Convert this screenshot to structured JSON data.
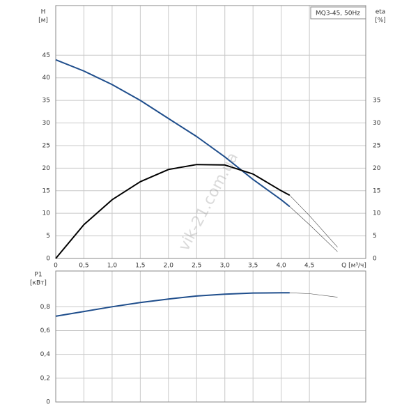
{
  "chart_data": [
    {
      "type": "line",
      "title": "MQ3-45, 50Hz",
      "y_label": "H",
      "y_unit": "[м]",
      "y2_label": "eta",
      "y2_unit": "[%]",
      "x_label": "Q [м³/ч]",
      "x": [
        0,
        0.5,
        1.0,
        1.5,
        2.0,
        2.5,
        3.0,
        3.5,
        4.0,
        4.15,
        4.5,
        5.0
      ],
      "xlim": [
        0,
        5.5
      ],
      "xticks": [
        0,
        {
          "value": 0.5,
          "label": "0,5"
        },
        {
          "value": 1.0,
          "label": "1,0"
        },
        {
          "value": 1.5,
          "label": "1,5"
        },
        {
          "value": 2.0,
          "label": "2,0"
        },
        {
          "value": 2.5,
          "label": "2,5"
        },
        {
          "value": 3.0,
          "label": "3,0"
        },
        {
          "value": 3.5,
          "label": "3,5"
        },
        {
          "value": 4.0,
          "label": "4,0"
        },
        {
          "value": 4.5,
          "label": "4,5"
        }
      ],
      "ylim": [
        0,
        56
      ],
      "yticks": [
        0,
        5,
        10,
        15,
        20,
        25,
        30,
        35,
        40,
        45
      ],
      "y2lim": [
        0,
        56
      ],
      "y2ticks": [
        0,
        5,
        10,
        15,
        20,
        25,
        30,
        35
      ],
      "grid": true,
      "series": [
        {
          "color": "#1f4e8c",
          "width": 2,
          "values": [
            44,
            41.5,
            38.5,
            35,
            31,
            27,
            22.5,
            17.5,
            13,
            11.5,
            null,
            null
          ]
        },
        {
          "color": "#444444",
          "width": 0.6,
          "values": [
            null,
            null,
            null,
            null,
            null,
            null,
            null,
            null,
            null,
            11.5,
            7.5,
            1.5
          ]
        },
        {
          "color": "#000000",
          "width": 2,
          "axis": "y2",
          "values": [
            0,
            7.5,
            13,
            17,
            19.7,
            20.8,
            20.7,
            18.7,
            15,
            14,
            null,
            null
          ]
        },
        {
          "color": "#444444",
          "width": 0.6,
          "axis": "y2",
          "values": [
            null,
            null,
            null,
            null,
            null,
            null,
            null,
            null,
            null,
            14,
            9.5,
            2.5
          ]
        }
      ],
      "watermark": "vik-21.com.ua"
    },
    {
      "type": "line",
      "y_label": "P1",
      "y_unit": "[кВт]",
      "x": [
        0,
        0.5,
        1.0,
        1.5,
        2.0,
        2.5,
        3.0,
        3.5,
        4.0,
        4.15,
        4.5,
        5.0
      ],
      "xlim": [
        0,
        5.5
      ],
      "xticks": [
        0,
        0.5,
        1.0,
        1.5,
        2.0,
        2.5,
        3.0,
        3.5,
        4.0,
        4.5
      ],
      "ylim": [
        0,
        1.1
      ],
      "yticks": [
        0,
        {
          "value": 0.2,
          "label": "0,2"
        },
        {
          "value": 0.4,
          "label": "0,4"
        },
        {
          "value": 0.6,
          "label": "0,6"
        },
        {
          "value": 0.8,
          "label": "0,8"
        }
      ],
      "grid": true,
      "series": [
        {
          "color": "#1f4e8c",
          "width": 2,
          "values": [
            0.72,
            0.76,
            0.8,
            0.835,
            0.865,
            0.89,
            0.905,
            0.915,
            0.917,
            0.917,
            null,
            null
          ]
        },
        {
          "color": "#444444",
          "width": 0.6,
          "values": [
            null,
            null,
            null,
            null,
            null,
            null,
            null,
            null,
            null,
            0.917,
            0.91,
            0.88
          ]
        }
      ]
    }
  ]
}
